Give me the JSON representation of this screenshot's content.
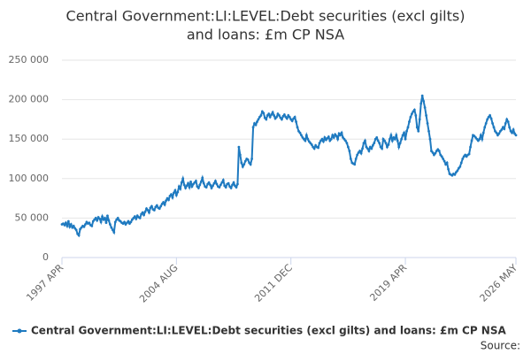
{
  "chart_data": {
    "type": "line",
    "title": [
      "Central Government:LI:LEVEL:Debt securities (excl gilts)",
      "and loans: £m CP NSA"
    ],
    "source": "Source:",
    "categories": [
      "1997 APR",
      null,
      null,
      null,
      null,
      null,
      null,
      null,
      null,
      null,
      null,
      null,
      null,
      null,
      null,
      null,
      null,
      null,
      null,
      null,
      null,
      null,
      null,
      null,
      null,
      null,
      null,
      null,
      null,
      null,
      null,
      null,
      null,
      null,
      null,
      null,
      null,
      null,
      null,
      null,
      null,
      null,
      null,
      null,
      null,
      null,
      null,
      null,
      null,
      null,
      null,
      null,
      null,
      null,
      null,
      null,
      null,
      null,
      null,
      null,
      null,
      null,
      null,
      null,
      null,
      null,
      null,
      null,
      null,
      null,
      null,
      null,
      null,
      null,
      null,
      null,
      null,
      null,
      null,
      null,
      null,
      null,
      null,
      null,
      null,
      null,
      null,
      null,
      "2004 AUG",
      null,
      null,
      null,
      null,
      null,
      null,
      null,
      null,
      null,
      null,
      null,
      null,
      null,
      null,
      null,
      null,
      null,
      null,
      null,
      null,
      null,
      null,
      null,
      null,
      null,
      null,
      null,
      null,
      null,
      null,
      null,
      null,
      null,
      null,
      null,
      null,
      null,
      null,
      null,
      null,
      null,
      null,
      null,
      null,
      null,
      null,
      null,
      null,
      null,
      null,
      null,
      null,
      null,
      null,
      null,
      null,
      null,
      null,
      null,
      null,
      null,
      null,
      null,
      null,
      null,
      null,
      null,
      null,
      null,
      null,
      null,
      null,
      null,
      null,
      null,
      null,
      null,
      null,
      null,
      null,
      null,
      null,
      null,
      null,
      null,
      null,
      null,
      "2011 DEC",
      null,
      null,
      null,
      null,
      null,
      null,
      null,
      null,
      null,
      null,
      null,
      null,
      null,
      null,
      null,
      null,
      null,
      null,
      null,
      null,
      null,
      null,
      null,
      null,
      null,
      null,
      null,
      null,
      null,
      null,
      null,
      null,
      null,
      null,
      null,
      null,
      null,
      null,
      null,
      null,
      null,
      null,
      null,
      null,
      null,
      null,
      null,
      null,
      null,
      null,
      null,
      null,
      null,
      null,
      null,
      null,
      null,
      null,
      null,
      null,
      null,
      null,
      null,
      null,
      null,
      null,
      null,
      null,
      null,
      null,
      null,
      null,
      null,
      null,
      null,
      null,
      null,
      null,
      null,
      null,
      null,
      null,
      null,
      null,
      null,
      null,
      null,
      "2019 APR",
      null,
      null,
      null,
      null,
      null,
      null,
      null,
      null,
      null,
      null,
      null,
      null,
      null,
      null,
      null,
      null,
      null,
      null,
      null,
      null,
      null,
      null,
      null,
      null,
      null,
      null,
      null,
      null,
      null,
      null,
      null,
      null,
      null,
      null,
      null,
      null,
      null,
      null,
      null,
      null,
      null,
      null,
      null,
      null,
      null,
      null,
      null,
      null,
      null,
      null,
      null,
      null,
      null,
      null,
      null,
      null,
      null,
      null,
      null,
      null,
      null,
      null,
      null,
      null,
      null,
      null,
      null,
      null,
      null,
      null,
      null,
      null,
      null,
      null,
      null,
      null,
      null,
      null,
      null,
      null,
      null,
      null,
      null,
      null,
      "2026 MAY"
    ],
    "series": [
      {
        "name": "Central Government:LI:LEVEL:Debt securities (excl gilts) and loans: £m CP NSA",
        "color": "#1f7ac0",
        "values": [
          42000,
          43000,
          41000,
          44000,
          40000,
          46000,
          39000,
          42000,
          38000,
          40000,
          37000,
          35000,
          30000,
          28000,
          36000,
          38000,
          40000,
          39000,
          42000,
          45000,
          43000,
          44000,
          41000,
          40000,
          46000,
          48000,
          50000,
          47000,
          51000,
          49000,
          45000,
          52000,
          48000,
          50000,
          44000,
          53000,
          47000,
          42000,
          38000,
          35000,
          32000,
          45000,
          48000,
          50000,
          47000,
          46000,
          44000,
          43000,
          45000,
          42000,
          44000,
          46000,
          43000,
          45000,
          48000,
          50000,
          52000,
          49000,
          53000,
          51000,
          50000,
          55000,
          57000,
          54000,
          58000,
          62000,
          60000,
          57000,
          63000,
          65000,
          61000,
          60000,
          64000,
          66000,
          63000,
          62000,
          65000,
          68000,
          70000,
          67000,
          72000,
          75000,
          73000,
          78000,
          80000,
          76000,
          82000,
          85000,
          79000,
          83000,
          90000,
          87000,
          95000,
          100000,
          92000,
          88000,
          91000,
          94000,
          89000,
          96000,
          90000,
          93000,
          95000,
          97000,
          90000,
          88000,
          92000,
          96000,
          101000,
          94000,
          90000,
          89000,
          93000,
          95000,
          92000,
          88000,
          91000,
          94000,
          97000,
          93000,
          90000,
          89000,
          92000,
          95000,
          98000,
          91000,
          89000,
          93000,
          94000,
          90000,
          88000,
          92000,
          95000,
          91000,
          89000,
          93000,
          140000,
          130000,
          120000,
          115000,
          118000,
          122000,
          125000,
          124000,
          120000,
          118000,
          125000,
          165000,
          170000,
          168000,
          172000,
          175000,
          178000,
          180000,
          185000,
          183000,
          177000,
          175000,
          180000,
          182000,
          178000,
          181000,
          184000,
          180000,
          176000,
          178000,
          182000,
          180000,
          177000,
          175000,
          179000,
          181000,
          178000,
          176000,
          180000,
          178000,
          175000,
          173000,
          176000,
          178000,
          172000,
          165000,
          160000,
          158000,
          155000,
          152000,
          150000,
          148000,
          155000,
          150000,
          147000,
          145000,
          143000,
          140000,
          138000,
          142000,
          140000,
          139000,
          145000,
          148000,
          150000,
          147000,
          152000,
          149000,
          151000,
          153000,
          148000,
          150000,
          155000,
          152000,
          156000,
          154000,
          150000,
          157000,
          155000,
          158000,
          152000,
          150000,
          148000,
          145000,
          140000,
          135000,
          125000,
          120000,
          119000,
          118000,
          125000,
          130000,
          133000,
          135000,
          132000,
          138000,
          145000,
          148000,
          140000,
          138000,
          135000,
          140000,
          138000,
          142000,
          145000,
          150000,
          152000,
          148000,
          145000,
          140000,
          138000,
          150000,
          148000,
          145000,
          140000,
          143000,
          150000,
          155000,
          148000,
          152000,
          150000,
          155000,
          148000,
          140000,
          145000,
          150000,
          155000,
          158000,
          150000,
          160000,
          165000,
          172000,
          178000,
          182000,
          185000,
          187000,
          180000,
          165000,
          160000,
          175000,
          195000,
          205000,
          198000,
          190000,
          180000,
          170000,
          160000,
          150000,
          135000,
          133000,
          130000,
          132000,
          135000,
          137000,
          135000,
          130000,
          128000,
          125000,
          122000,
          118000,
          120000,
          112000,
          106000,
          105000,
          104000,
          106000,
          105000,
          108000,
          110000,
          113000,
          115000,
          120000,
          125000,
          128000,
          130000,
          128000,
          130000,
          131000,
          140000,
          148000,
          155000,
          154000,
          152000,
          150000,
          148000,
          150000,
          155000,
          150000,
          158000,
          165000,
          170000,
          175000,
          178000,
          180000,
          176000,
          170000,
          165000,
          160000,
          158000,
          155000,
          157000,
          160000,
          162000,
          165000,
          163000,
          170000,
          175000,
          172000,
          165000,
          160000,
          158000,
          162000,
          157000,
          155000
        ]
      }
    ],
    "ylim": [
      0,
      250000
    ],
    "yticks": [
      0,
      {
        "value": 50000,
        "label": "50 000"
      },
      {
        "value": 100000,
        "label": "100 000"
      },
      {
        "value": 150000,
        "label": "150 000"
      },
      {
        "value": 200000,
        "label": "200 000"
      },
      {
        "value": 250000,
        "label": "250 000"
      }
    ],
    "grid": true
  }
}
